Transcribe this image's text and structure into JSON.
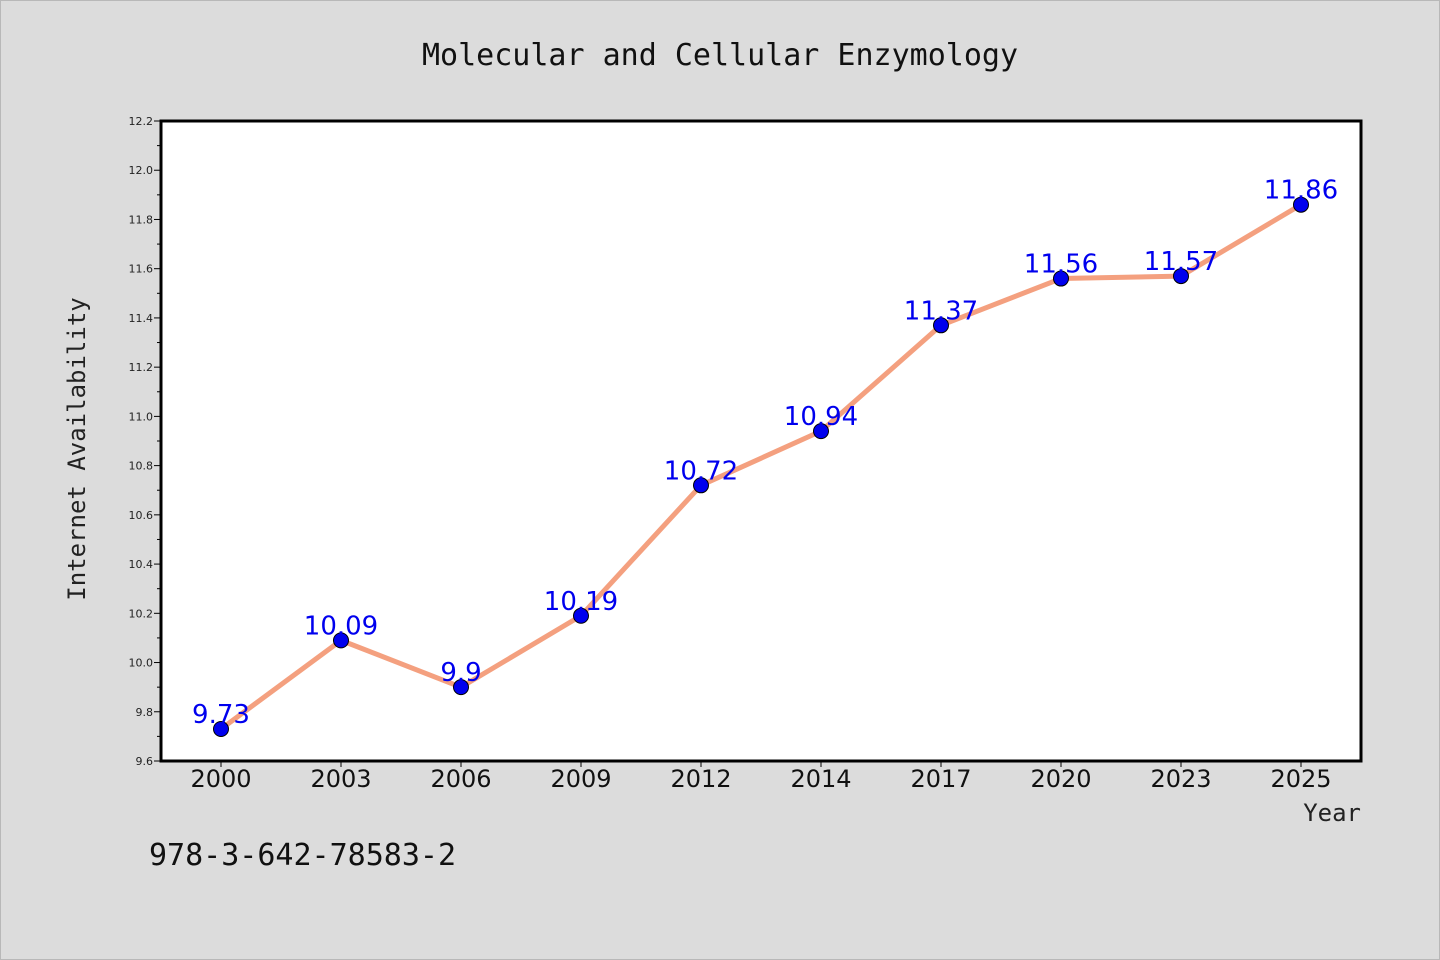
{
  "isbn": "978-3-642-78583-2",
  "colors": {
    "background": "#dcdcdc",
    "plot_background": "#ffffff",
    "line": "#f4a07f",
    "marker": "#0000ee",
    "data_label": "#0000ee"
  },
  "chart_data": {
    "type": "line",
    "title": "Molecular and Cellular Enzymology",
    "xlabel": "Year",
    "ylabel": "Internet Availability",
    "categories": [
      "2000",
      "2003",
      "2006",
      "2009",
      "2012",
      "2014",
      "2017",
      "2020",
      "2023",
      "2025"
    ],
    "series": [
      {
        "values": [
          9.73,
          10.09,
          9.9,
          10.19,
          10.72,
          10.94,
          11.37,
          11.56,
          11.57,
          11.86
        ],
        "labels": [
          "9.73",
          "10.09",
          "9.9",
          "10.19",
          "10.72",
          "10.94",
          "11.37",
          "11.56",
          "11.57",
          "11.86"
        ]
      }
    ],
    "ylim": [
      9.6,
      12.2
    ],
    "yticks": [
      "9.6",
      "9.8",
      "10.0",
      "10.2",
      "10.4",
      "10.6",
      "10.8",
      "11.0",
      "11.2",
      "11.4",
      "11.6",
      "11.8",
      "12.0",
      "12.2"
    ],
    "grid": false,
    "legend": false,
    "marker": "circle"
  }
}
